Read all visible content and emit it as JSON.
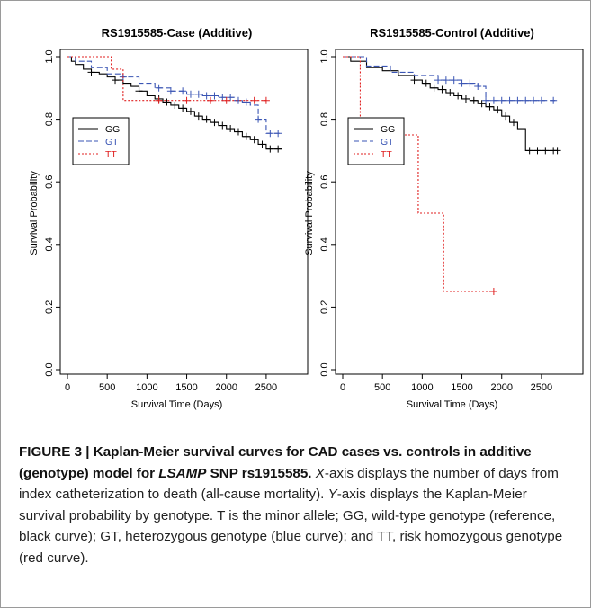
{
  "colors": {
    "GG": "#000000",
    "GT": "#3a55b4",
    "TT": "#e02020",
    "axis": "#000000"
  },
  "chart_data": [
    {
      "type": "line",
      "title": "RS1915585-Case (Additive)",
      "xlabel": "Survival Time (Days)",
      "ylabel": "Survival Probability",
      "xlim": [
        0,
        2750
      ],
      "ylim": [
        0,
        1
      ],
      "xticks": [
        "0",
        "500",
        "1000",
        "1500",
        "2000",
        "2500"
      ],
      "yticks": [
        "0.0",
        "0.2",
        "0.4",
        "0.6",
        "0.8",
        "1.0"
      ],
      "legend": {
        "position": "left",
        "entries": [
          "GG",
          "GT",
          "TT"
        ]
      },
      "series": [
        {
          "name": "GG",
          "style": "solid",
          "color": "#000000",
          "x": [
            0,
            50,
            100,
            200,
            300,
            400,
            500,
            600,
            700,
            800,
            900,
            1000,
            1100,
            1200,
            1300,
            1400,
            1500,
            1600,
            1700,
            1800,
            1900,
            2000,
            2100,
            2200,
            2300,
            2400,
            2500,
            2600,
            2700
          ],
          "y": [
            1.0,
            0.985,
            0.975,
            0.96,
            0.95,
            0.945,
            0.935,
            0.925,
            0.915,
            0.905,
            0.89,
            0.875,
            0.865,
            0.855,
            0.845,
            0.835,
            0.825,
            0.81,
            0.8,
            0.79,
            0.78,
            0.77,
            0.76,
            0.745,
            0.735,
            0.72,
            0.705,
            0.705,
            0.705
          ],
          "censored": [
            300,
            600,
            900,
            1150,
            1250,
            1350,
            1450,
            1550,
            1650,
            1750,
            1850,
            1950,
            2050,
            2150,
            2250,
            2350,
            2450,
            2550,
            2650
          ]
        },
        {
          "name": "GT",
          "style": "dashed",
          "color": "#3a55b4",
          "x": [
            0,
            100,
            300,
            500,
            700,
            900,
            1100,
            1300,
            1500,
            1700,
            1900,
            2100,
            2200,
            2300,
            2400,
            2500,
            2600,
            2700
          ],
          "y": [
            1.0,
            0.985,
            0.965,
            0.945,
            0.935,
            0.915,
            0.9,
            0.89,
            0.88,
            0.875,
            0.87,
            0.86,
            0.855,
            0.845,
            0.8,
            0.755,
            0.755,
            0.755
          ],
          "censored": [
            700,
            1150,
            1300,
            1450,
            1550,
            1650,
            1750,
            1850,
            1950,
            2050,
            2150,
            2250,
            2400,
            2550,
            2650
          ]
        },
        {
          "name": "TT",
          "style": "dotted",
          "color": "#e02020",
          "x": [
            0,
            550,
            700,
            2500
          ],
          "y": [
            1.0,
            0.96,
            0.86,
            0.86
          ],
          "censored": [
            1150,
            1500,
            1800,
            2000,
            2350,
            2500
          ]
        }
      ]
    },
    {
      "type": "line",
      "title": "RS1915585-Control (Additive)",
      "xlabel": "Survival Time (Days)",
      "ylabel": "Survival Probability",
      "xlim": [
        0,
        2750
      ],
      "ylim": [
        0,
        1
      ],
      "xticks": [
        "0",
        "500",
        "1000",
        "1500",
        "2000",
        "2500"
      ],
      "yticks": [
        "0.0",
        "0.2",
        "0.4",
        "0.6",
        "0.8",
        "1.0"
      ],
      "legend": {
        "position": "left",
        "entries": [
          "GG",
          "GT",
          "TT"
        ]
      },
      "series": [
        {
          "name": "GG",
          "style": "solid",
          "color": "#000000",
          "x": [
            0,
            100,
            300,
            500,
            700,
            900,
            1000,
            1100,
            1200,
            1300,
            1400,
            1500,
            1600,
            1700,
            1800,
            1900,
            2000,
            2100,
            2200,
            2300,
            2400,
            2500,
            2600,
            2700
          ],
          "y": [
            1.0,
            0.985,
            0.965,
            0.955,
            0.94,
            0.925,
            0.915,
            0.9,
            0.895,
            0.885,
            0.875,
            0.865,
            0.86,
            0.85,
            0.84,
            0.83,
            0.81,
            0.79,
            0.77,
            0.7,
            0.7,
            0.7,
            0.7,
            0.7
          ],
          "censored": [
            900,
            1050,
            1150,
            1250,
            1350,
            1450,
            1550,
            1650,
            1750,
            1850,
            1950,
            2050,
            2150,
            2350,
            2450,
            2550,
            2650,
            2700
          ]
        },
        {
          "name": "GT",
          "style": "dashed",
          "color": "#3a55b4",
          "x": [
            0,
            300,
            600,
            900,
            1200,
            1500,
            1700,
            1800,
            2000,
            2200,
            2400,
            2700
          ],
          "y": [
            1.0,
            0.97,
            0.95,
            0.94,
            0.925,
            0.915,
            0.905,
            0.86,
            0.86,
            0.86,
            0.86,
            0.86
          ],
          "censored": [
            1200,
            1300,
            1400,
            1500,
            1600,
            1700,
            1800,
            1900,
            2000,
            2100,
            2200,
            2300,
            2400,
            2500,
            2650
          ]
        },
        {
          "name": "TT",
          "style": "dotted",
          "color": "#e02020",
          "x": [
            0,
            220,
            950,
            1270,
            1900
          ],
          "y": [
            1.0,
            0.75,
            0.5,
            0.25,
            0.25
          ],
          "censored": [
            1900
          ]
        }
      ]
    }
  ],
  "caption": {
    "label": "FIGURE 3 | ",
    "title_a": "Kaplan-Meier survival curves for CAD cases vs. controls in additive (genotype) model for ",
    "title_gene": "LSAMP",
    "title_b": " SNP rs1915585.",
    "x_axis_letter": "X",
    "text_1": "-axis displays the number of days from index catheterization to death (all-cause mortality). ",
    "y_axis_letter": "Y",
    "text_2": "-axis displays the Kaplan-Meier survival probability by genotype. T is the minor allele; GG, wild-type genotype (reference, black curve); GT, heterozygous genotype (blue curve); and TT, risk homozygous genotype (red curve)."
  }
}
